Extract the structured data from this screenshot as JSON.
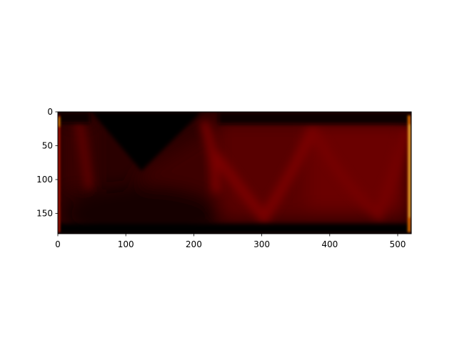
{
  "chart_data": {
    "type": "heatmap",
    "title": "",
    "xlabel": "",
    "ylabel": "",
    "colormap": "hot",
    "xlim": [
      0,
      520
    ],
    "ylim": [
      180,
      0
    ],
    "y_inverted": true,
    "xticks": [
      0,
      100,
      200,
      300,
      400,
      500
    ],
    "yticks": [
      0,
      50,
      100,
      150
    ],
    "grid": false,
    "legend": "none",
    "value_range": [
      0,
      1
    ],
    "features": [
      {
        "kind": "dark-triangle",
        "x": [
          50,
          110,
          212
        ],
        "y": [
          5,
          85,
          5
        ],
        "value": 0.0
      },
      {
        "kind": "bright-vertical-edge",
        "x": 518,
        "y": [
          0,
          180
        ],
        "value": 0.95
      },
      {
        "kind": "bright-vertical-edge",
        "x": 1,
        "y": [
          0,
          180
        ],
        "value": 0.55
      },
      {
        "kind": "dark-horizontal-band",
        "x": [
          0,
          520
        ],
        "y": [
          168,
          180
        ],
        "value": 0.02
      },
      {
        "kind": "dark-horizontal-band",
        "x": [
          235,
          520
        ],
        "y": [
          0,
          18
        ],
        "value": 0.02
      },
      {
        "kind": "dark-horizontal-band",
        "x": [
          0,
          50
        ],
        "y": [
          0,
          18
        ],
        "value": 0.03
      },
      {
        "kind": "bright-arc",
        "x": [
          300,
          395
        ],
        "y": [
          160,
          20
        ],
        "value": 0.45
      },
      {
        "kind": "bright-arc",
        "x": [
          430,
          515
        ],
        "y": [
          160,
          25
        ],
        "value": 0.4
      },
      {
        "kind": "bright-ridge",
        "x": 235,
        "y": [
          18,
          120
        ],
        "value": 0.4
      },
      {
        "kind": "bright-ridge",
        "x": 27,
        "y": [
          18,
          110
        ],
        "value": 0.35
      }
    ]
  }
}
